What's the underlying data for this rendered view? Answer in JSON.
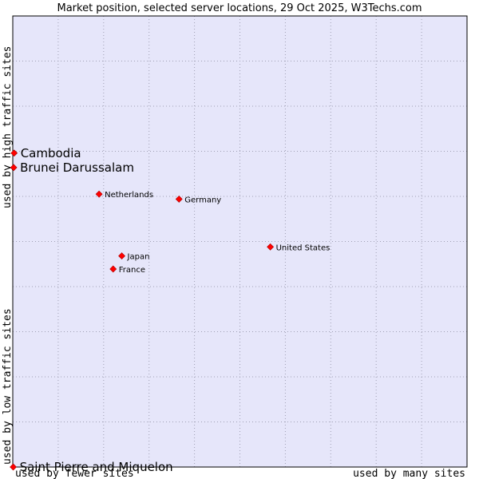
{
  "chart_data": {
    "type": "scatter",
    "title": "Market position, selected server locations, 29 Oct 2025, W3Techs.com",
    "xlabel_left": "used by fewer sites",
    "xlabel_right": "used by many sites",
    "ylabel_bottom": "used by low traffic sites",
    "ylabel_top": "used by high traffic sites",
    "xlim": [
      0,
      100
    ],
    "ylim": [
      0,
      100
    ],
    "grid": true,
    "colors": {
      "plot_background": "#e6e6fa",
      "point": "#ff0000",
      "point_edge": "#aa0000",
      "frame": "#000000"
    },
    "points": [
      {
        "name": "Cambodia",
        "x": 0.3,
        "y": 69.6,
        "emphasis": true
      },
      {
        "name": "Brunei Darussalam",
        "x": 0.2,
        "y": 66.4,
        "emphasis": true
      },
      {
        "name": "Saint Pierre and Miquelon",
        "x": 0.1,
        "y": 0.0,
        "emphasis": true
      },
      {
        "name": "Netherlands",
        "x": 19.0,
        "y": 60.5,
        "emphasis": false
      },
      {
        "name": "Germany",
        "x": 36.6,
        "y": 59.4,
        "emphasis": false
      },
      {
        "name": "United States",
        "x": 56.7,
        "y": 48.8,
        "emphasis": false
      },
      {
        "name": "Japan",
        "x": 24.0,
        "y": 46.8,
        "emphasis": false
      },
      {
        "name": "France",
        "x": 22.1,
        "y": 43.9,
        "emphasis": false
      }
    ]
  }
}
